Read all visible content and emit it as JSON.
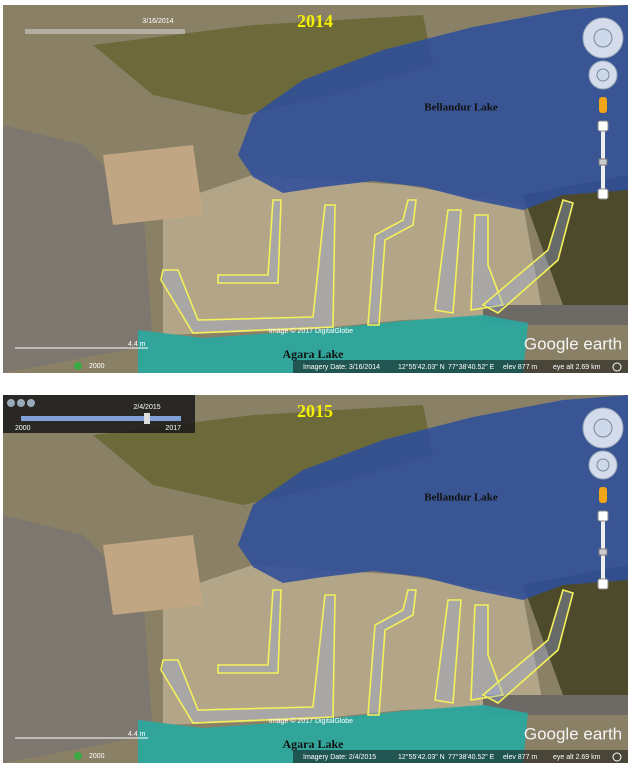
{
  "panels": [
    {
      "year": "2014",
      "slider_date": "3/16/2014",
      "lake_north": "Bellandur Lake",
      "lake_south": "Agara Lake",
      "copyright": "Image © 2017 DigitalGlobe",
      "scale": "4.4 m",
      "scale_year": "2000",
      "status": {
        "imagery_date": "Imagery Date: 3/16/2014",
        "lat": "12°55'42.03\" N",
        "lon": "77°38'40.52\" E",
        "elev": "elev   877 m",
        "eye_alt": "eye alt   2.69 km"
      },
      "logo": "Google earth"
    },
    {
      "year": "2015",
      "slider_date": "2/4/2015",
      "slider_start": "2000",
      "slider_end": "2017",
      "lake_north": "Bellandur Lake",
      "lake_south": "Agara Lake",
      "copyright": "Image © 2017 DigitalGlobe",
      "scale": "4.4 m",
      "scale_year": "2000",
      "status": {
        "imagery_date": "Imagery Date: 2/4/2015",
        "lat": "12°55'42.03\" N",
        "lon": "77°38'40.52\" E",
        "elev": "elev   877 m",
        "eye_alt": "eye alt   2.69 km"
      },
      "logo": "Google earth"
    }
  ]
}
